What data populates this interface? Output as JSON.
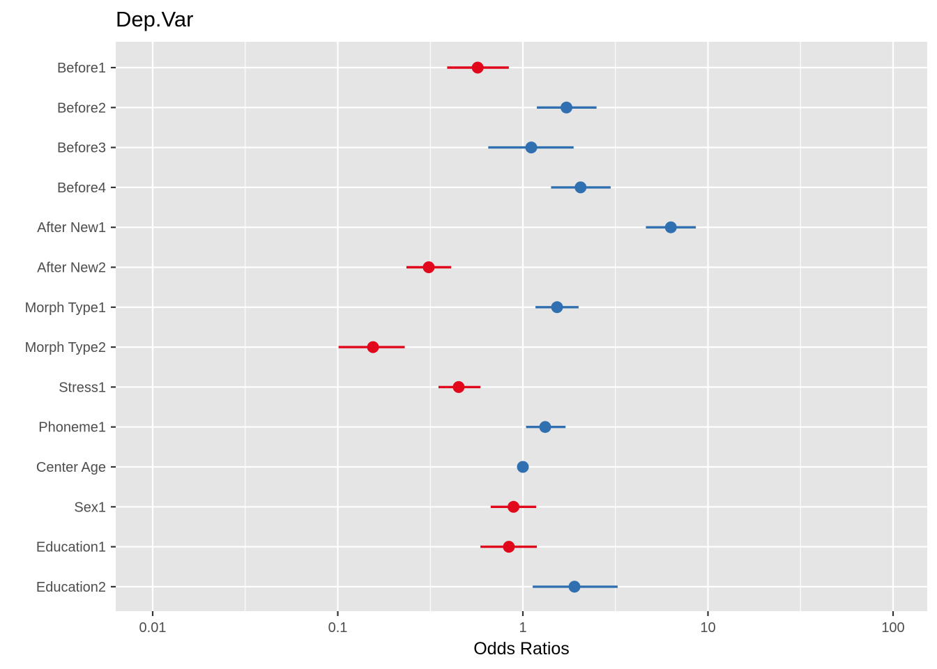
{
  "chart_data": {
    "type": "scatter",
    "title": "Dep.Var",
    "xlabel": "Odds Ratios",
    "ylabel": "",
    "x_scale": "log10",
    "xlim": [
      0.0065,
      150
    ],
    "x_ticks": [
      0.01,
      0.1,
      1,
      10,
      100
    ],
    "x_tick_labels": [
      "0.01",
      "0.1",
      "1",
      "10",
      "100"
    ],
    "grid": true,
    "legend": "none",
    "colors": {
      "positive": "#3070b0",
      "negative": "#e0081a",
      "panel": "#e5e5e5",
      "grid": "#ffffff"
    },
    "points": [
      {
        "label": "Before1",
        "estimate": 0.57,
        "ci_low": 0.39,
        "ci_high": 0.84,
        "direction": "negative"
      },
      {
        "label": "Before2",
        "estimate": 1.72,
        "ci_low": 1.19,
        "ci_high": 2.5,
        "direction": "positive"
      },
      {
        "label": "Before3",
        "estimate": 1.11,
        "ci_low": 0.65,
        "ci_high": 1.88,
        "direction": "positive"
      },
      {
        "label": "Before4",
        "estimate": 2.05,
        "ci_low": 1.42,
        "ci_high": 2.98,
        "direction": "positive"
      },
      {
        "label": "After New1",
        "estimate": 6.3,
        "ci_low": 4.62,
        "ci_high": 8.6,
        "direction": "positive"
      },
      {
        "label": "After New2",
        "estimate": 0.31,
        "ci_low": 0.235,
        "ci_high": 0.41,
        "direction": "negative"
      },
      {
        "label": "Morph Type1",
        "estimate": 1.53,
        "ci_low": 1.17,
        "ci_high": 2.0,
        "direction": "positive"
      },
      {
        "label": "Morph Type2",
        "estimate": 0.155,
        "ci_low": 0.101,
        "ci_high": 0.23,
        "direction": "negative"
      },
      {
        "label": "Stress1",
        "estimate": 0.45,
        "ci_low": 0.35,
        "ci_high": 0.59,
        "direction": "negative"
      },
      {
        "label": "Phoneme1",
        "estimate": 1.32,
        "ci_low": 1.04,
        "ci_high": 1.7,
        "direction": "positive"
      },
      {
        "label": "Center Age",
        "estimate": 1.0,
        "ci_low": 0.99,
        "ci_high": 1.01,
        "direction": "positive"
      },
      {
        "label": "Sex1",
        "estimate": 0.89,
        "ci_low": 0.67,
        "ci_high": 1.18,
        "direction": "negative"
      },
      {
        "label": "Education1",
        "estimate": 0.84,
        "ci_low": 0.59,
        "ci_high": 1.19,
        "direction": "negative"
      },
      {
        "label": "Education2",
        "estimate": 1.9,
        "ci_low": 1.13,
        "ci_high": 3.25,
        "direction": "positive"
      }
    ]
  }
}
